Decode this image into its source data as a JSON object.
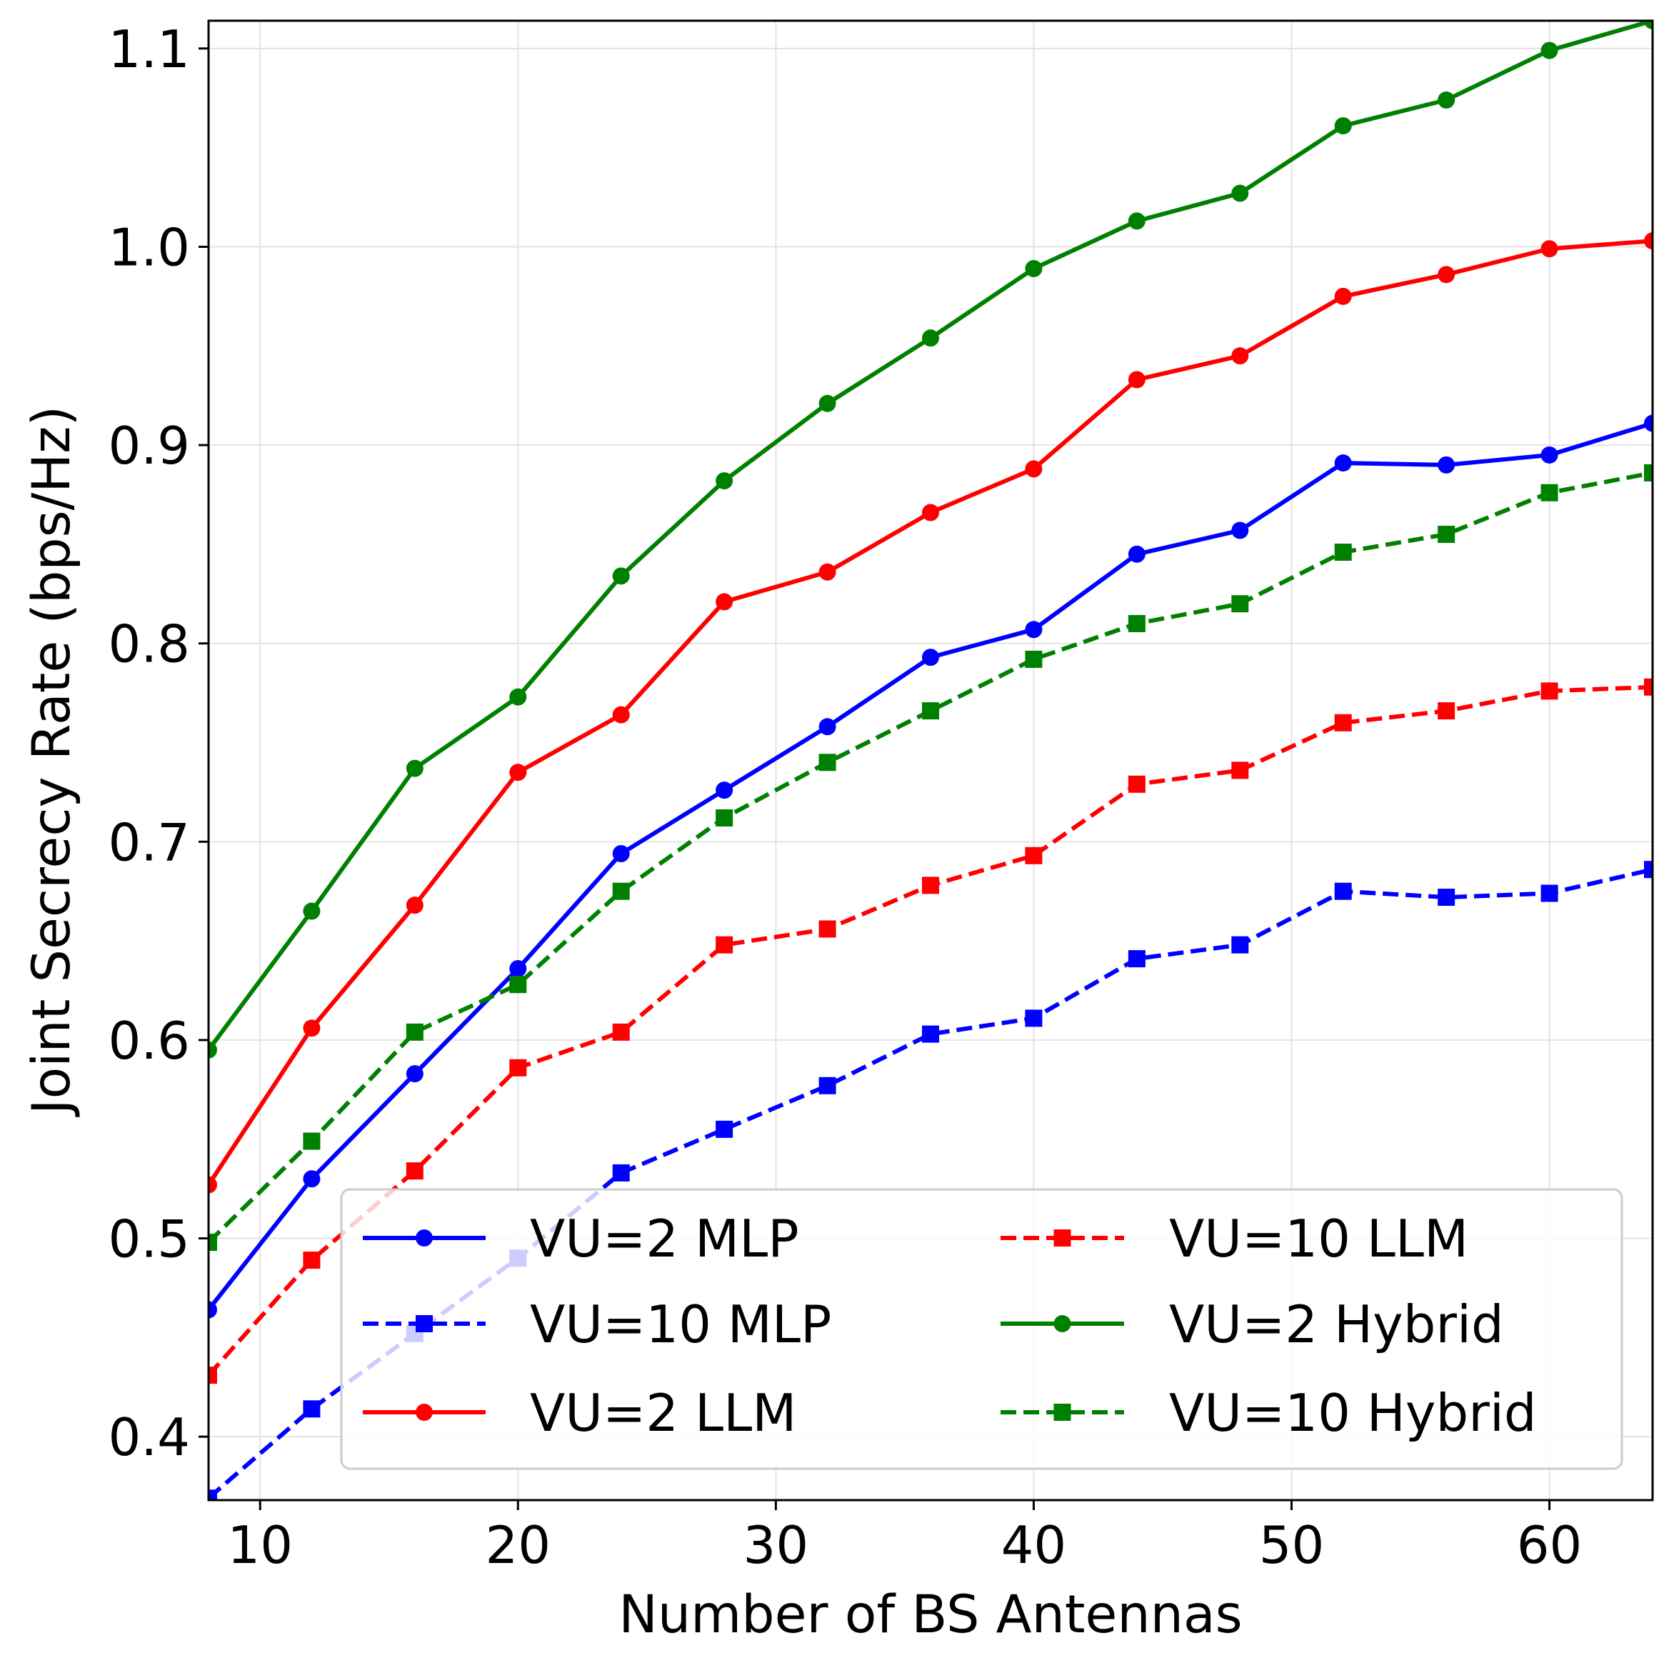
{
  "chart_data": {
    "type": "line",
    "title": "",
    "xlabel": "Number of BS Antennas",
    "ylabel": "Joint Secrecy Rate (bps/Hz)",
    "xlim": [
      8,
      64
    ],
    "ylim": [
      0.368,
      1.114
    ],
    "xticks": [
      10,
      20,
      30,
      40,
      50,
      60
    ],
    "xtick_labels": [
      "10",
      "20",
      "30",
      "40",
      "50",
      "60"
    ],
    "yticks": [
      0.4,
      0.5,
      0.6,
      0.7,
      0.8,
      0.9,
      1.0,
      1.1
    ],
    "ytick_labels": [
      "0.4",
      "0.5",
      "0.6",
      "0.7",
      "0.8",
      "0.9",
      "1.0",
      "1.1"
    ],
    "grid": true,
    "legend_position": "lower-right",
    "legend_columns": 2,
    "x": [
      8,
      12,
      16,
      20,
      24,
      28,
      32,
      36,
      40,
      44,
      48,
      52,
      56,
      60,
      64
    ],
    "series": [
      {
        "name": "VU=2 MLP",
        "color": "#0000ff",
        "line": "solid",
        "marker": "circle",
        "values": [
          0.464,
          0.53,
          0.583,
          0.636,
          0.694,
          0.726,
          0.758,
          0.793,
          0.807,
          0.845,
          0.857,
          0.891,
          0.89,
          0.895,
          0.911
        ]
      },
      {
        "name": "VU=10 MLP",
        "color": "#0000ff",
        "line": "dashed",
        "marker": "square",
        "values": [
          0.369,
          0.414,
          0.452,
          0.49,
          0.533,
          0.555,
          0.577,
          0.603,
          0.611,
          0.641,
          0.648,
          0.675,
          0.672,
          0.674,
          0.686
        ]
      },
      {
        "name": "VU=2 LLM",
        "color": "#ff0000",
        "line": "solid",
        "marker": "circle",
        "values": [
          0.527,
          0.606,
          0.668,
          0.735,
          0.764,
          0.821,
          0.836,
          0.866,
          0.888,
          0.933,
          0.945,
          0.975,
          0.986,
          0.999,
          1.003
        ]
      },
      {
        "name": "VU=10 LLM",
        "color": "#ff0000",
        "line": "dashed",
        "marker": "square",
        "values": [
          0.431,
          0.489,
          0.534,
          0.586,
          0.604,
          0.648,
          0.656,
          0.678,
          0.693,
          0.729,
          0.736,
          0.76,
          0.766,
          0.776,
          0.778
        ]
      },
      {
        "name": "VU=2 Hybrid",
        "color": "#008000",
        "line": "solid",
        "marker": "circle",
        "values": [
          0.595,
          0.665,
          0.737,
          0.773,
          0.834,
          0.882,
          0.921,
          0.954,
          0.989,
          1.013,
          1.027,
          1.061,
          1.074,
          1.099,
          1.114
        ]
      },
      {
        "name": "VU=10 Hybrid",
        "color": "#008000",
        "line": "dashed",
        "marker": "square",
        "values": [
          0.498,
          0.549,
          0.604,
          0.628,
          0.675,
          0.712,
          0.74,
          0.766,
          0.792,
          0.81,
          0.82,
          0.846,
          0.855,
          0.876,
          0.886
        ]
      }
    ]
  }
}
